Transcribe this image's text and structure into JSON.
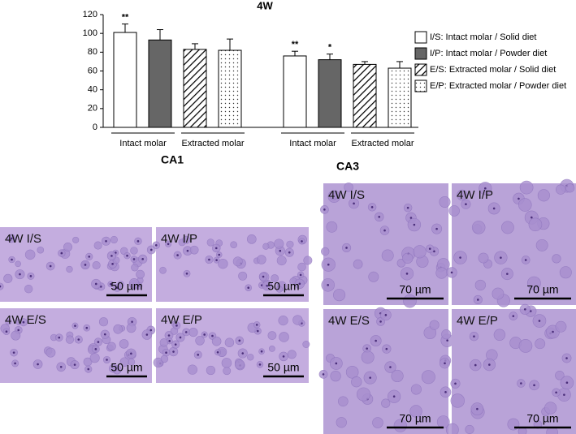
{
  "chart_data": {
    "type": "bar",
    "title": "4W",
    "ylim": [
      0,
      120
    ],
    "yticks": [
      0,
      20,
      40,
      60,
      80,
      100,
      120
    ],
    "group_labels": [
      "Intact molar",
      "Extracted molar",
      "Intact molar",
      "Extracted molar"
    ],
    "series": [
      {
        "name": "I/S: Intact molar / Solid diet",
        "color": "#ffffff",
        "pattern": "solid",
        "values": [
          101,
          76
        ],
        "errors": [
          9,
          5
        ],
        "value_labels": [
          "**",
          "**"
        ]
      },
      {
        "name": "I/P: Intact molar / Powder diet",
        "color": "#666666",
        "pattern": "solid",
        "values": [
          93,
          72
        ],
        "errors": [
          11,
          6
        ],
        "value_labels": [
          null,
          "*"
        ]
      },
      {
        "name": "E/S: Extracted molar / Solid diet",
        "color": "#ffffff",
        "pattern": "hatch",
        "values": [
          83,
          67
        ],
        "errors": [
          6,
          3
        ],
        "value_labels": [
          null,
          null
        ]
      },
      {
        "name": "E/P: Extracted molar / Powder diet",
        "color": "#ffffff",
        "pattern": "dots",
        "values": [
          82,
          63
        ],
        "errors": [
          12,
          7
        ],
        "value_labels": [
          null,
          null
        ]
      }
    ]
  },
  "images": [
    {
      "region": "CA1",
      "panels": [
        {
          "label": "4W I/S",
          "scale": "50 µm"
        },
        {
          "label": "4W I/P",
          "scale": "50 µm"
        },
        {
          "label": "4W E/S",
          "scale": "50 µm"
        },
        {
          "label": "4W E/P",
          "scale": "50 µm"
        }
      ]
    },
    {
      "region": "CA3",
      "panels": [
        {
          "label": "4W I/S",
          "scale": "70 µm"
        },
        {
          "label": "4W I/P",
          "scale": "70 µm"
        },
        {
          "label": "4W E/S",
          "scale": "70 µm"
        },
        {
          "label": "4W E/P",
          "scale": "70 µm"
        }
      ]
    }
  ]
}
